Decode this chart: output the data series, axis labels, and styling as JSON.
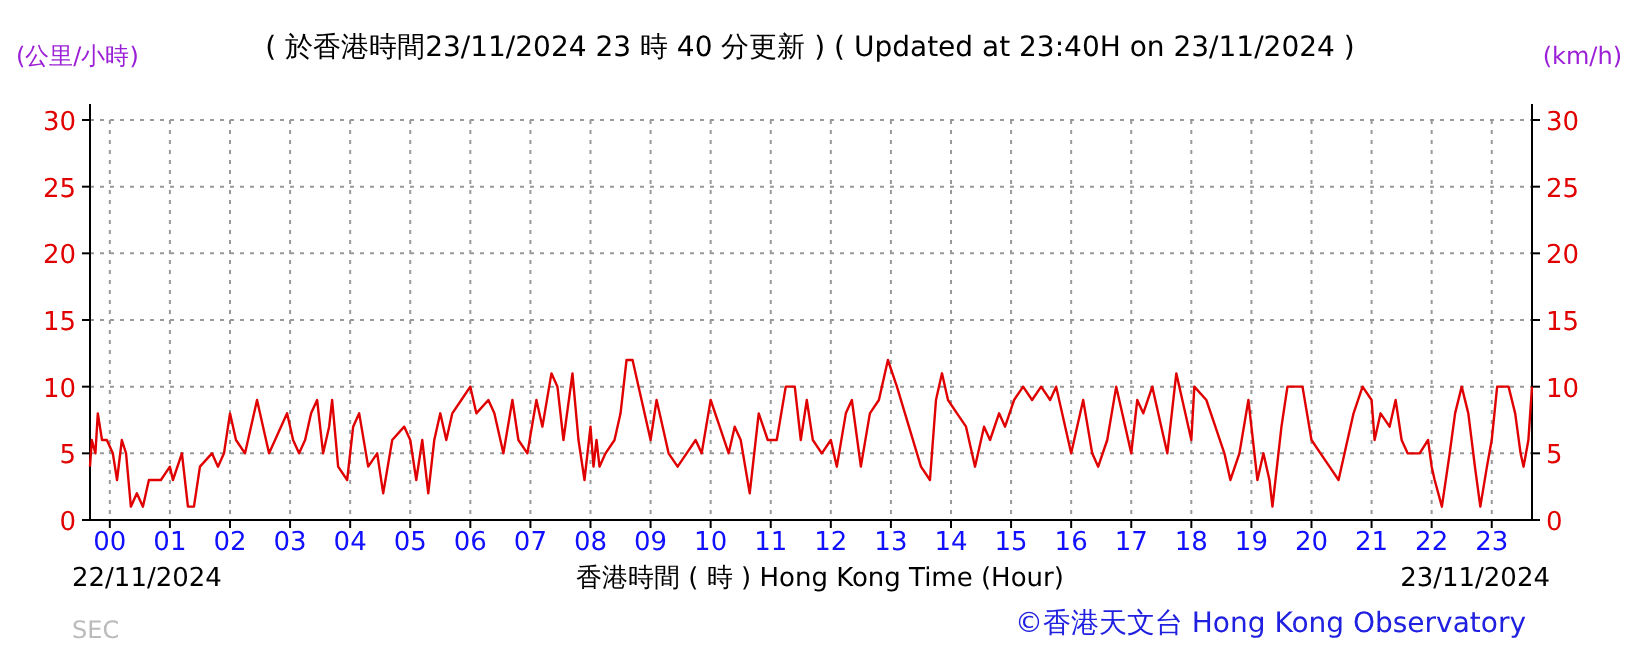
{
  "chart_data": {
    "type": "line",
    "title": "( 於香港時間23/11/2024 23 時 40 分更新 ) ( Updated at 23:40H on 23/11/2024 )",
    "xlabel": "香港時間 ( 時 ) Hong Kong Time (Hour)",
    "ylabel": "(公里/小時)",
    "y2label": "(km/h)",
    "annotations": [
      "22/11/2024",
      "23/11/2024",
      "©香港天文台 Hong Kong Observatory",
      "SEC"
    ],
    "xlim": [
      -0.33,
      23.67
    ],
    "xticks": [
      {
        "value": 0,
        "label": "00"
      },
      {
        "value": 1,
        "label": "01"
      },
      {
        "value": 2,
        "label": "02"
      },
      {
        "value": 3,
        "label": "03"
      },
      {
        "value": 4,
        "label": "04"
      },
      {
        "value": 5,
        "label": "05"
      },
      {
        "value": 6,
        "label": "06"
      },
      {
        "value": 7,
        "label": "07"
      },
      {
        "value": 8,
        "label": "08"
      },
      {
        "value": 9,
        "label": "09"
      },
      {
        "value": 10,
        "label": "10"
      },
      {
        "value": 11,
        "label": "11"
      },
      {
        "value": 12,
        "label": "12"
      },
      {
        "value": 13,
        "label": "13"
      },
      {
        "value": 14,
        "label": "14"
      },
      {
        "value": 15,
        "label": "15"
      },
      {
        "value": 16,
        "label": "16"
      },
      {
        "value": 17,
        "label": "17"
      },
      {
        "value": 18,
        "label": "18"
      },
      {
        "value": 19,
        "label": "19"
      },
      {
        "value": 20,
        "label": "20"
      },
      {
        "value": 21,
        "label": "21"
      },
      {
        "value": 22,
        "label": "22"
      },
      {
        "value": 23,
        "label": "23"
      }
    ],
    "ylim": [
      0,
      30
    ],
    "yticks": [
      0,
      5,
      10,
      15,
      20,
      25,
      30
    ],
    "y2lim": [
      0,
      30
    ],
    "y2ticks": [
      0,
      5,
      10,
      15,
      20,
      25,
      30
    ],
    "grid": true,
    "marker": "none",
    "line_style": "solid",
    "series": [
      {
        "color": "#e00000",
        "x": [
          -0.33,
          -0.3,
          -0.24,
          -0.2,
          -0.13,
          -0.05,
          0.05,
          0.12,
          0.2,
          0.27,
          0.35,
          0.45,
          0.55,
          0.65,
          0.85,
          1.0,
          1.05,
          1.2,
          1.3,
          1.4,
          1.5,
          1.7,
          1.8,
          1.9,
          2.0,
          2.1,
          2.25,
          2.35,
          2.45,
          2.55,
          2.65,
          2.75,
          2.95,
          3.05,
          3.15,
          3.25,
          3.35,
          3.45,
          3.55,
          3.65,
          3.7,
          3.8,
          3.95,
          4.05,
          4.15,
          4.3,
          4.45,
          4.55,
          4.7,
          4.9,
          5.0,
          5.1,
          5.2,
          5.3,
          5.4,
          5.5,
          5.6,
          5.7,
          5.85,
          6.0,
          6.1,
          6.3,
          6.4,
          6.55,
          6.7,
          6.8,
          6.95,
          7.1,
          7.2,
          7.35,
          7.45,
          7.55,
          7.7,
          7.8,
          7.9,
          8.0,
          8.05,
          8.1,
          8.15,
          8.25,
          8.4,
          8.5,
          8.6,
          8.7,
          8.8,
          8.9,
          9.0,
          9.1,
          9.15,
          9.3,
          9.45,
          9.6,
          9.75,
          9.85,
          10.0,
          10.15,
          10.3,
          10.4,
          10.5,
          10.65,
          10.8,
          10.95,
          11.1,
          11.25,
          11.4,
          11.5,
          11.6,
          11.7,
          11.85,
          12.0,
          12.1,
          12.25,
          12.35,
          12.5,
          12.65,
          12.8,
          12.95,
          13.1,
          13.3,
          13.5,
          13.65,
          13.75,
          13.85,
          13.95,
          14.1,
          14.25,
          14.4,
          14.55,
          14.65,
          14.8,
          14.9,
          15.05,
          15.2,
          15.35,
          15.5,
          15.65,
          15.75,
          15.85,
          16.0,
          16.05,
          16.2,
          16.35,
          16.45,
          16.6,
          16.75,
          16.85,
          17.0,
          17.1,
          17.2,
          17.35,
          17.5,
          17.6,
          17.75,
          17.9,
          18.0,
          18.05,
          18.25,
          18.4,
          18.55,
          18.65,
          18.8,
          18.95,
          19.05,
          19.1,
          19.2,
          19.3,
          19.35,
          19.5,
          19.6,
          19.85,
          20.0,
          20.15,
          20.3,
          20.45,
          20.55,
          20.7,
          20.85,
          21.0,
          21.05,
          21.15,
          21.3,
          21.4,
          21.5,
          21.6,
          21.8,
          21.94,
          22.0,
          22.05,
          22.17,
          22.3,
          22.39,
          22.5,
          22.61,
          22.72,
          22.81,
          22.92,
          23.0,
          23.09,
          23.28,
          23.39,
          23.48,
          23.53,
          23.61,
          23.67
        ],
        "values": [
          4,
          6,
          5,
          8,
          6,
          6,
          5,
          3,
          6,
          5,
          1,
          2,
          1,
          3,
          3,
          4,
          3,
          5,
          1,
          1,
          4,
          5,
          4,
          5,
          8,
          6,
          5,
          7,
          9,
          7,
          5,
          6,
          8,
          6,
          5,
          6,
          8,
          9,
          5,
          7,
          9,
          4,
          3,
          7,
          8,
          4,
          5,
          2,
          6,
          7,
          6,
          3,
          6,
          2,
          6,
          8,
          6,
          8,
          9,
          10,
          8,
          9,
          8,
          5,
          9,
          6,
          5,
          9,
          7,
          11,
          10,
          6,
          11,
          6,
          3,
          7,
          4,
          6,
          4,
          5,
          6,
          8,
          12,
          12,
          10,
          8,
          6,
          9,
          8,
          5,
          4,
          5,
          6,
          5,
          9,
          7,
          5,
          7,
          6,
          2,
          8,
          6,
          6,
          10,
          10,
          6,
          9,
          6,
          5,
          6,
          4,
          8,
          9,
          4,
          8,
          9,
          12,
          10,
          7,
          4,
          3,
          9,
          11,
          9,
          8,
          7,
          4,
          7,
          6,
          8,
          7,
          9,
          10,
          9,
          10,
          9,
          10,
          8,
          5,
          6,
          9,
          5,
          4,
          6,
          10,
          8,
          5,
          9,
          8,
          10,
          7,
          5,
          11,
          8,
          6,
          10,
          9,
          7,
          5,
          3,
          5,
          9,
          5,
          3,
          5,
          3,
          1,
          7,
          10,
          10,
          6,
          5,
          4,
          3,
          5,
          8,
          10,
          9,
          6,
          8,
          7,
          9,
          6,
          5,
          5,
          6,
          4,
          3,
          1,
          5,
          8,
          10,
          8,
          4,
          1,
          4,
          6,
          10,
          10,
          8,
          5,
          4,
          6,
          10
        ]
      }
    ]
  }
}
